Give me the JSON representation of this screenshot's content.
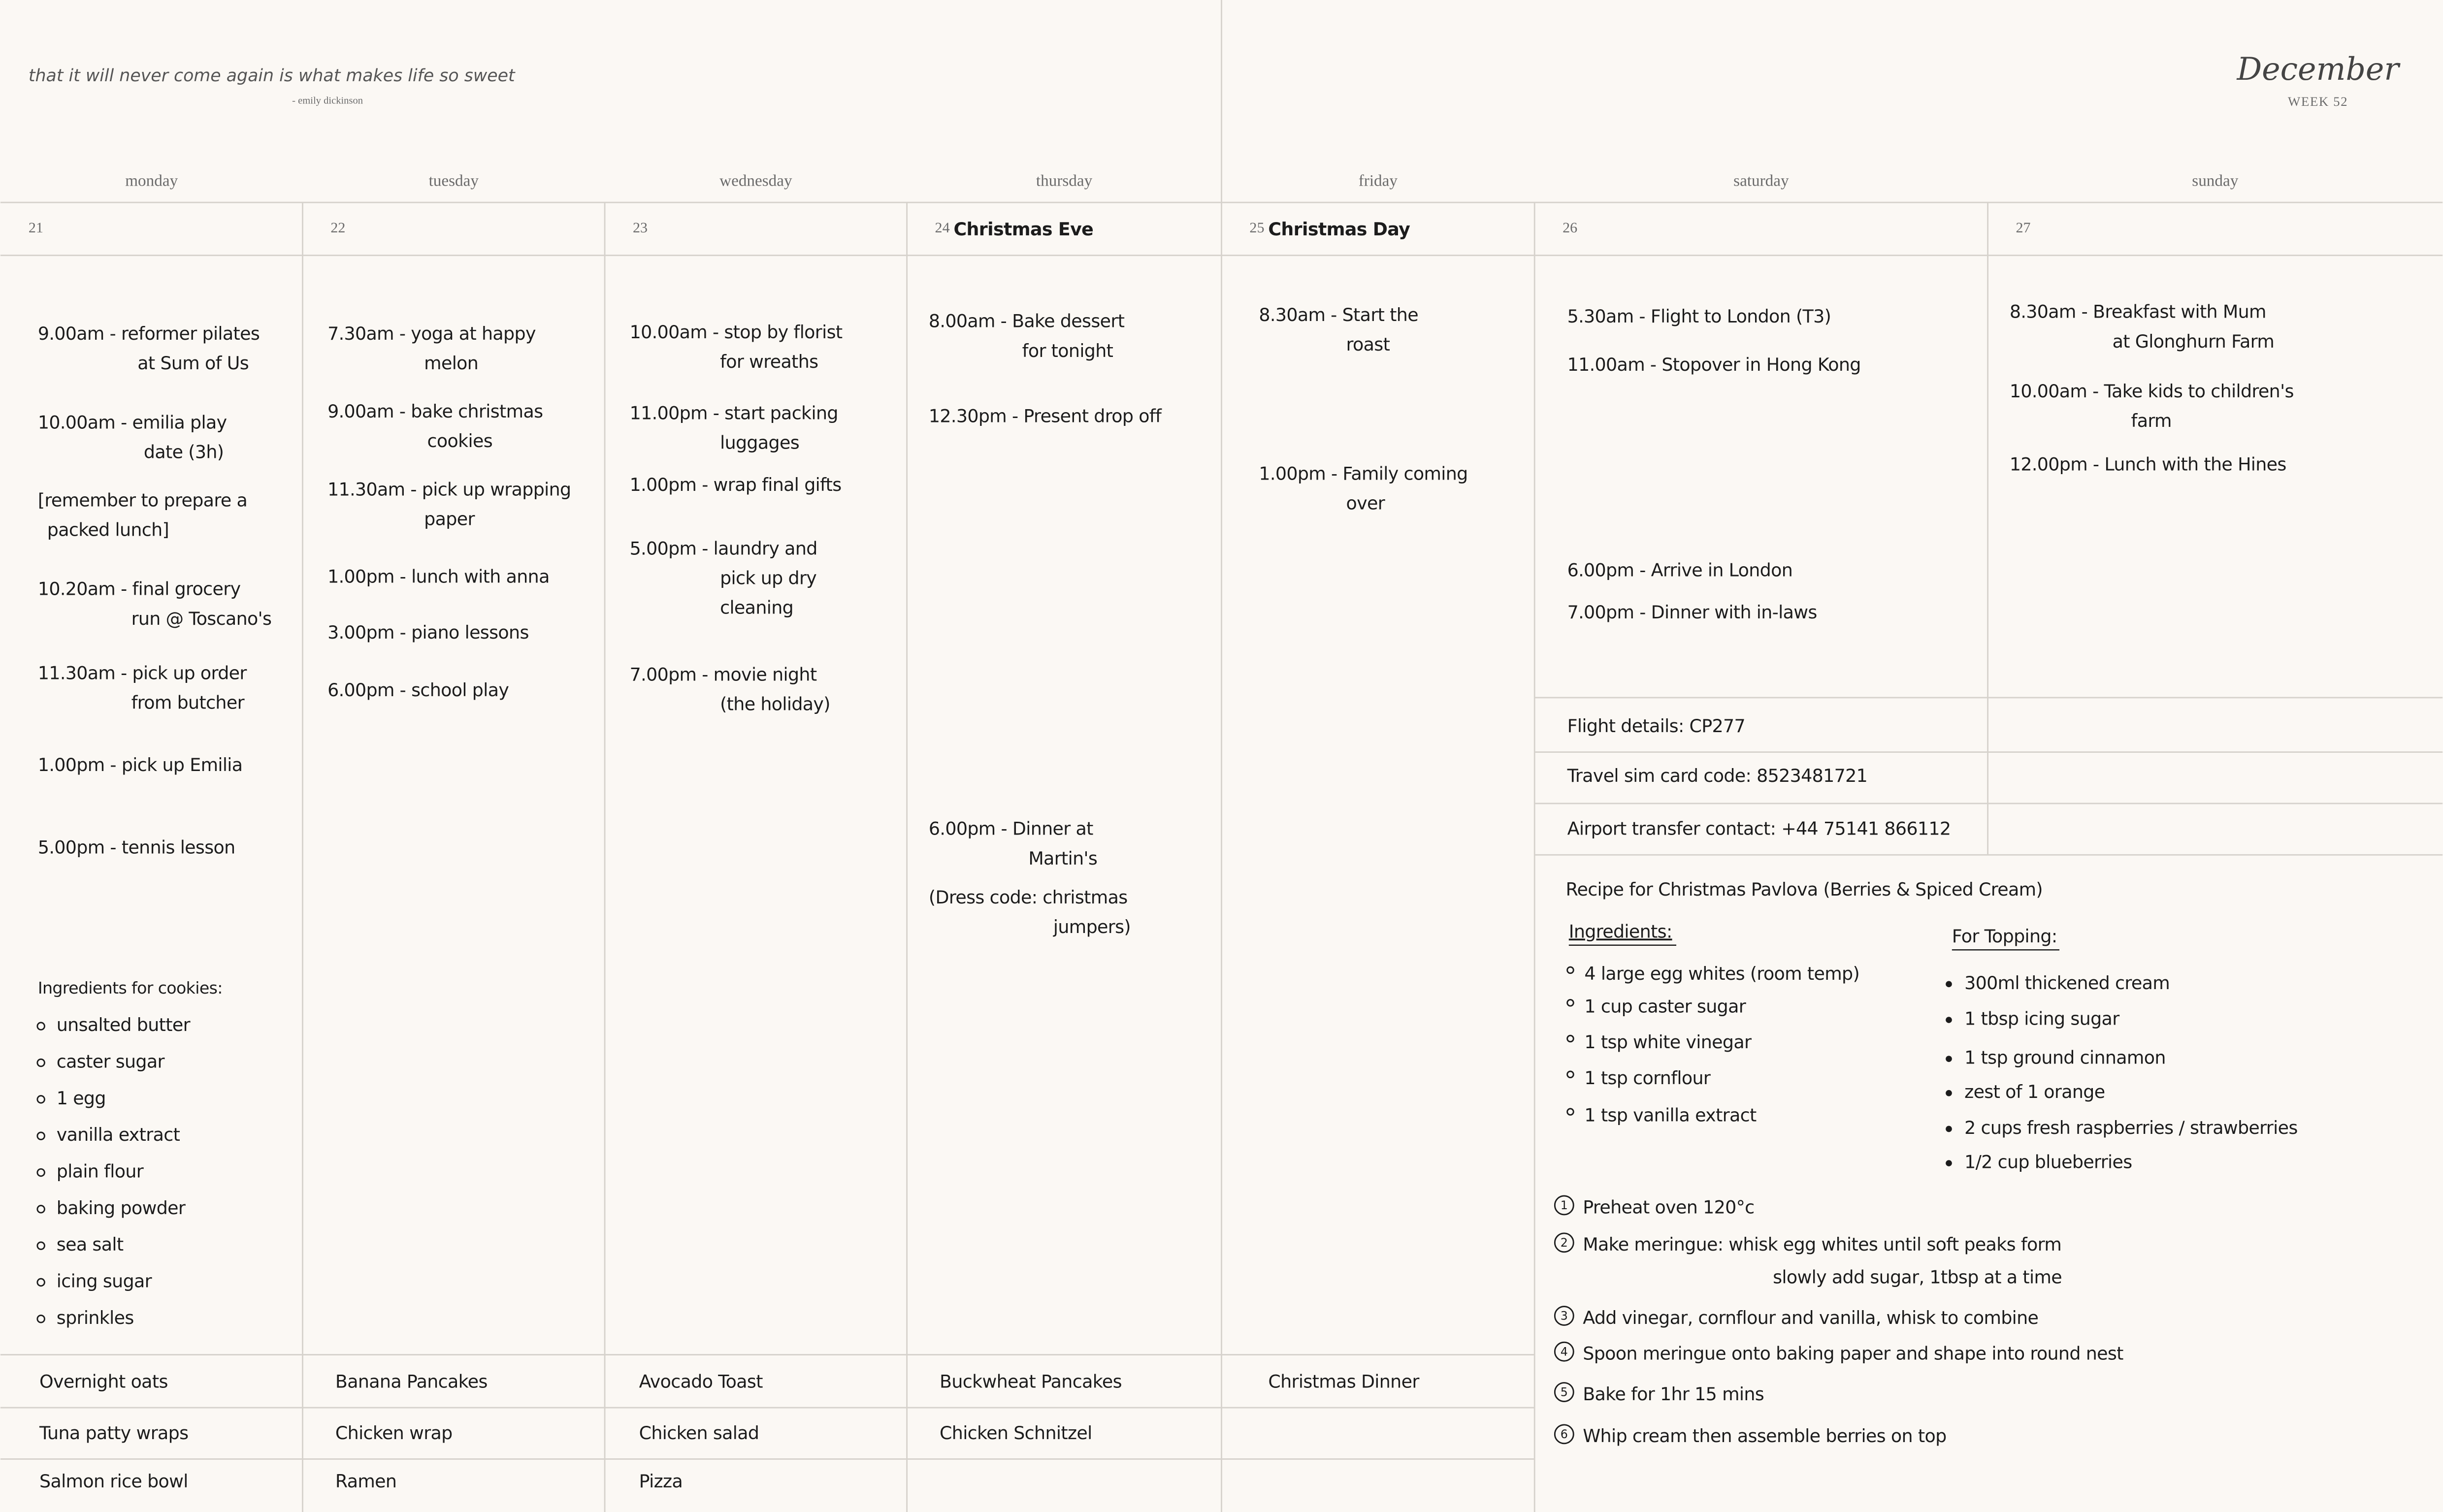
{
  "header": {
    "quote": "that it will never come again is what makes life so sweet",
    "author": "- emily dickinson",
    "month": "December",
    "week": "WEEK 52"
  },
  "days": [
    {
      "name": "monday",
      "date": "21",
      "events": [
        [
          "9.00am - reformer pilates",
          "at Sum of Us"
        ],
        [
          "10.00am - emilia play",
          "date (3h)"
        ],
        [
          "[remember to prepare a",
          "packed lunch]"
        ],
        [
          "10.20am - final grocery",
          "run @ Toscano's"
        ],
        [
          "11.30am - pick up order",
          "from butcher"
        ],
        [
          "1.00pm - pick up Emilia"
        ],
        [
          "5.00pm - tennis lesson"
        ]
      ]
    },
    {
      "name": "tuesday",
      "date": "22",
      "events": [
        [
          "7.30am - yoga at happy",
          "melon"
        ],
        [
          "9.00am - bake christmas",
          "cookies"
        ],
        [
          "11.30am - pick up wrapping",
          "paper"
        ],
        [
          "1.00pm - lunch with anna"
        ],
        [
          "3.00pm - piano lessons"
        ],
        [
          "6.00pm - school play"
        ]
      ]
    },
    {
      "name": "wednesday",
      "date": "23",
      "events": [
        [
          "10.00am - stop by florist",
          "for wreaths"
        ],
        [
          "11.00pm - start packing",
          "luggages"
        ],
        [
          "1.00pm - wrap final gifts"
        ],
        [
          "5.00pm - laundry and",
          "pick up dry",
          "cleaning"
        ],
        [
          "7.00pm - movie night",
          "(the holiday)"
        ]
      ]
    },
    {
      "name": "thursday",
      "date": "24",
      "label": "Christmas Eve",
      "events": [
        [
          "8.00am - Bake dessert",
          "for tonight"
        ],
        [
          "12.30pm - Present drop off"
        ],
        [
          "6.00pm - Dinner at",
          "Martin's"
        ],
        [
          "(Dress code: christmas",
          "jumpers)"
        ]
      ]
    },
    {
      "name": "friday",
      "date": "25",
      "label": "Christmas Day",
      "events": [
        [
          "8.30am - Start the",
          "roast"
        ],
        [
          "1.00pm - Family coming",
          "over"
        ]
      ]
    },
    {
      "name": "saturday",
      "date": "26",
      "events": [
        [
          "5.30am - Flight to London (T3)"
        ],
        [
          "11.00am - Stopover in Hong Kong"
        ],
        [
          "6.00pm - Arrive in London"
        ],
        [
          "7.00pm - Dinner with in-laws"
        ]
      ]
    },
    {
      "name": "sunday",
      "date": "27",
      "events": [
        [
          "8.30am - Breakfast with Mum",
          "at Glonghurn Farm"
        ],
        [
          "10.00am - Take kids to children's",
          "farm"
        ],
        [
          "12.00pm - Lunch with the Hines"
        ]
      ]
    }
  ],
  "cookie_list": {
    "title": "Ingredients for cookies:",
    "items": [
      "unsalted butter",
      "caster sugar",
      "1 egg",
      "vanilla extract",
      "plain flour",
      "baking powder",
      "sea salt",
      "icing sugar",
      "sprinkles"
    ]
  },
  "travel_notes": [
    "Flight details: CP277",
    "Travel sim card code: 8523481721",
    "Airport transfer contact: +44 75141 866112"
  ],
  "meals": [
    [
      "Overnight oats",
      "Banana Pancakes",
      "Avocado Toast",
      "Buckwheat Pancakes",
      "Christmas Dinner"
    ],
    [
      "Tuna patty wraps",
      "Chicken wrap",
      "Chicken salad",
      "Chicken Schnitzel"
    ],
    [
      "Salmon rice bowl",
      "Ramen",
      "Pizza"
    ]
  ],
  "recipe": {
    "title": "Recipe for Christmas Pavlova (Berries & Spiced Cream)",
    "ingredients": {
      "title": "Ingredients:",
      "items": [
        "4 large egg whites (room temp)",
        "1 cup caster sugar",
        "1 tsp white vinegar",
        "1 tsp cornflour",
        "1 tsp vanilla extract"
      ]
    },
    "topping": {
      "title": "For Topping:",
      "items": [
        "300ml thickened cream",
        "1 tbsp icing sugar",
        "1 tsp ground cinnamon",
        "zest of 1 orange",
        "2 cups fresh raspberries / strawberries",
        "1/2 cup blueberries"
      ]
    },
    "steps": [
      {
        "number": "1",
        "lines": [
          "Preheat oven 120°c"
        ]
      },
      {
        "number": "2",
        "lines": [
          "Make meringue: whisk egg whites until soft peaks form",
          "slowly add sugar, 1tbsp at a time"
        ]
      },
      {
        "number": "3",
        "lines": [
          "Add vinegar, cornflour and vanilla, whisk to combine"
        ]
      },
      {
        "number": "4",
        "lines": [
          "Spoon meringue onto baking paper and shape into round nest"
        ]
      },
      {
        "number": "5",
        "lines": [
          "Bake for 1hr 15 mins"
        ]
      },
      {
        "number": "6",
        "lines": [
          "Whip cream then assemble berries on top"
        ]
      }
    ]
  }
}
